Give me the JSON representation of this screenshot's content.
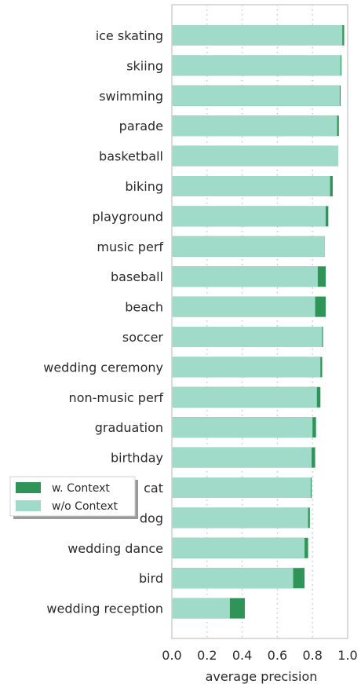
{
  "chart_data": {
    "type": "bar",
    "orientation": "horizontal",
    "stacked_overlay": true,
    "categories": [
      "ice skating",
      "skiing",
      "swimming",
      "parade",
      "basketball",
      "biking",
      "playground",
      "music perf",
      "baseball",
      "beach",
      "soccer",
      "wedding ceremony",
      "non-music perf",
      "graduation",
      "birthday",
      "cat",
      "dog",
      "wedding dance",
      "bird",
      "wedding reception"
    ],
    "series": [
      {
        "name": "w/o Context",
        "color": "#9fdbc8",
        "values": [
          0.97,
          0.96,
          0.955,
          0.94,
          0.945,
          0.9,
          0.875,
          0.87,
          0.83,
          0.815,
          0.855,
          0.845,
          0.825,
          0.8,
          0.795,
          0.79,
          0.775,
          0.755,
          0.69,
          0.33
        ]
      },
      {
        "name": "w. Context",
        "color": "#2e9457",
        "values": [
          0.98,
          0.965,
          0.96,
          0.95,
          0.945,
          0.915,
          0.89,
          0.87,
          0.875,
          0.875,
          0.86,
          0.855,
          0.845,
          0.82,
          0.815,
          0.795,
          0.785,
          0.775,
          0.755,
          0.415
        ]
      }
    ],
    "xlabel": "average precision",
    "ylabel": "",
    "title": "",
    "xlim": [
      0.0,
      1.0
    ],
    "xticks": [
      "0.0",
      "0.2",
      "0.4",
      "0.6",
      "0.8",
      "1.0"
    ],
    "grid": "vertical dotted",
    "legend_placement": "lower-left"
  }
}
